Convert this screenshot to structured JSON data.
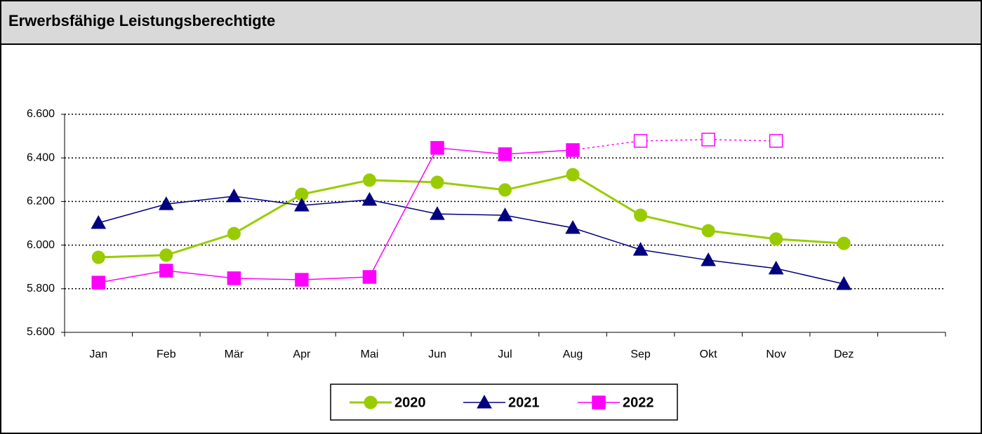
{
  "chart_data": {
    "type": "line",
    "title": "Erwerbsfähige Leistungsberechtigte",
    "categories": [
      "Jan",
      "Feb",
      "Mär",
      "Apr",
      "Mai",
      "Jun",
      "Jul",
      "Aug",
      "Sep",
      "Okt",
      "Nov",
      "Dez",
      null
    ],
    "series": [
      {
        "name": "2020",
        "color": "#99cc00",
        "marker": "circle",
        "values": [
          5944,
          5954,
          6053,
          6233,
          6298,
          6288,
          6253,
          6323,
          6137,
          6066,
          6028,
          6008,
          null
        ]
      },
      {
        "name": "2021",
        "color": "#000080",
        "marker": "triangle",
        "values": [
          6102,
          6188,
          6224,
          6182,
          6208,
          6143,
          6137,
          6079,
          5979,
          5931,
          5893,
          5822,
          null
        ]
      },
      {
        "name": "2022",
        "color": "#ff00ff",
        "marker": "square",
        "dotted_from": 8,
        "values": [
          5828,
          5883,
          5848,
          5841,
          5854,
          6446,
          6417,
          6436,
          6478,
          6484,
          6478,
          null,
          null
        ]
      }
    ],
    "ylim": [
      5600,
      6600
    ],
    "yticks": [
      {
        "value": 5600,
        "label": "5.600"
      },
      {
        "value": 5800,
        "label": "5.800"
      },
      {
        "value": 6000,
        "label": "6.000"
      },
      {
        "value": 6200,
        "label": "6.200"
      },
      {
        "value": 6400,
        "label": "6.400"
      },
      {
        "value": 6600,
        "label": "6.600"
      }
    ],
    "grid": true,
    "legend": "bottom"
  }
}
